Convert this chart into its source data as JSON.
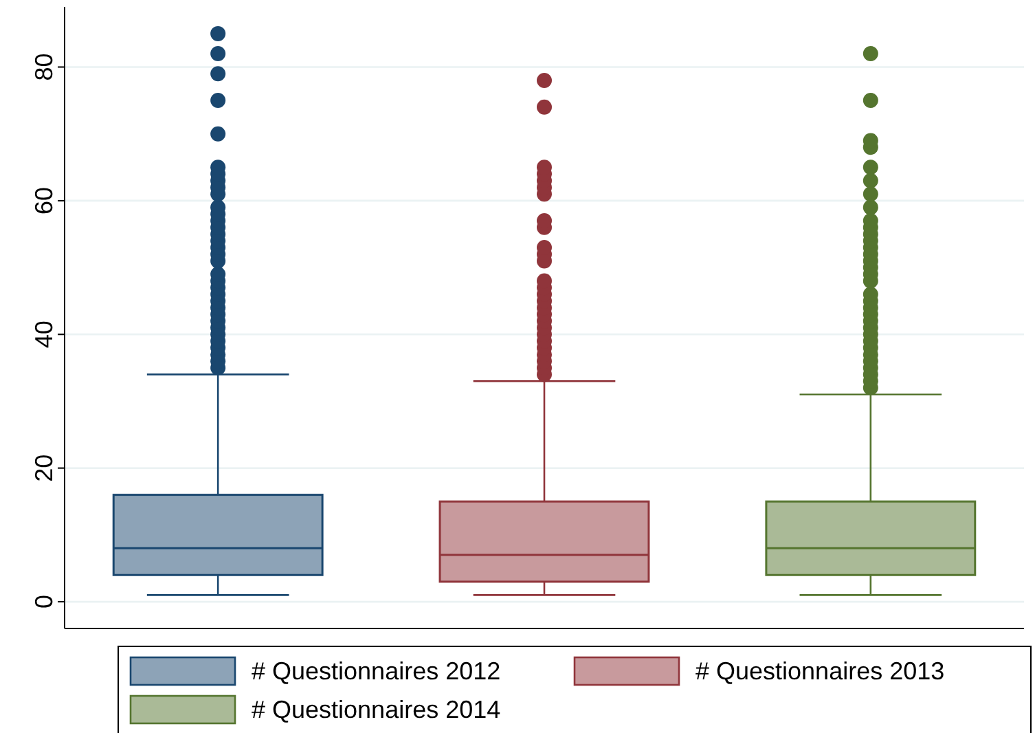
{
  "chart_data": {
    "type": "box",
    "categories": [
      null,
      null,
      null
    ],
    "ylim": [
      -4,
      89
    ],
    "yticks": [
      0,
      20,
      40,
      60,
      80
    ],
    "grid": "y",
    "legend": "bottom",
    "marker": "circle",
    "series": [
      {
        "name": "# Questionnaires 2012",
        "color": "#1a476f",
        "boxes": [
          {
            "low": 1,
            "q1": 4,
            "median": 8,
            "q3": 16,
            "high": 34,
            "outliers": [
              35,
              36,
              37,
              38,
              39,
              40,
              41,
              42,
              43,
              44,
              45,
              46,
              47,
              48,
              49,
              51,
              52,
              53,
              54,
              55,
              56,
              57,
              58,
              59,
              61,
              62,
              63,
              64,
              65,
              70,
              75,
              79,
              82,
              85
            ]
          },
          null,
          null
        ]
      },
      {
        "name": "# Questionnaires 2013",
        "color": "#90353b",
        "boxes": [
          null,
          {
            "low": 1,
            "q1": 3,
            "median": 7,
            "q3": 15,
            "high": 33,
            "outliers": [
              34,
              35,
              36,
              37,
              38,
              39,
              40,
              41,
              42,
              43,
              44,
              45,
              46,
              47,
              48,
              51,
              52,
              53,
              56,
              57,
              61,
              62,
              63,
              64,
              65,
              74,
              78
            ]
          },
          null
        ]
      },
      {
        "name": "# Questionnaires 2014",
        "color": "#55752f",
        "boxes": [
          null,
          null,
          {
            "low": 1,
            "q1": 4,
            "median": 8,
            "q3": 15,
            "high": 31,
            "outliers": [
              32,
              33,
              34,
              35,
              36,
              37,
              38,
              39,
              40,
              41,
              42,
              43,
              44,
              45,
              46,
              48,
              49,
              50,
              51,
              52,
              53,
              54,
              55,
              56,
              57,
              59,
              61,
              63,
              65,
              68,
              69,
              75,
              82
            ]
          }
        ]
      }
    ]
  }
}
